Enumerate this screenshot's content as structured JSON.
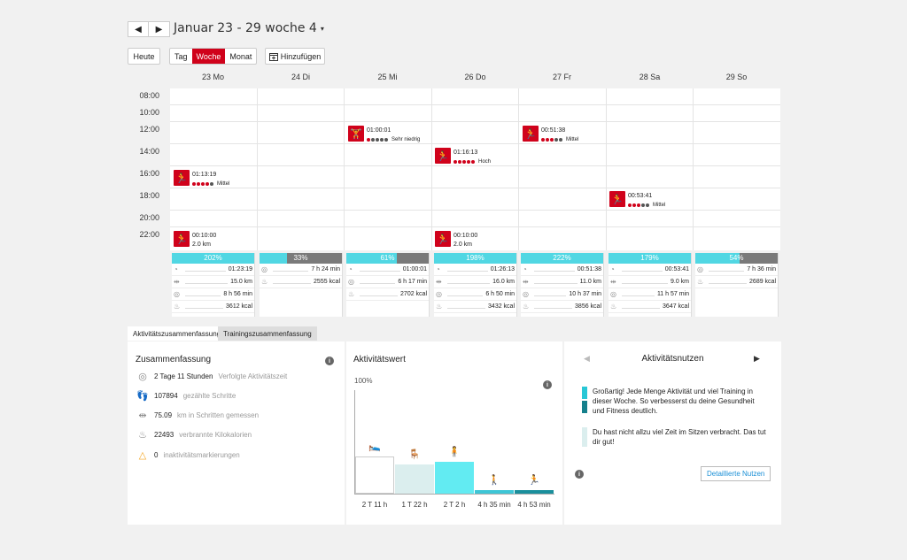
{
  "header": {
    "prev_label": "◀",
    "next_label": "▶",
    "title": "Januar 23 - 29 woche 4",
    "caret": "▾",
    "today_label": "Heute",
    "view_tabs": [
      {
        "label": "Tag"
      },
      {
        "label": "Woche"
      },
      {
        "label": "Monat"
      }
    ],
    "add_label": "Hinzufügen"
  },
  "days": [
    "23 Mo",
    "24 Di",
    "25 Mi",
    "26 Do",
    "27 Fr",
    "28 Sa",
    "29 So"
  ],
  "times": [
    "08:00",
    "10:00",
    "12:00",
    "14:00",
    "16:00",
    "18:00",
    "20:00",
    "22:00"
  ],
  "events": [
    {
      "icon": "running-icon",
      "glyph": "🏃",
      "duration": "01:13:19",
      "intensity": 4,
      "level": "Mittel"
    },
    {
      "icon": "running-icon",
      "glyph": "🏃",
      "duration": "00:10:00",
      "distance": "2.0 km"
    },
    {
      "icon": "strength-icon",
      "glyph": "🏋",
      "duration": "01:00:01",
      "intensity": 1,
      "level": "Sehr niedrig"
    },
    {
      "icon": "running-icon",
      "glyph": "🏃",
      "duration": "01:16:13",
      "intensity": 5,
      "level": "Hoch"
    },
    {
      "icon": "running-icon",
      "glyph": "🏃",
      "duration": "00:10:00",
      "distance": "2.0 km"
    },
    {
      "icon": "running-icon",
      "glyph": "🏃",
      "duration": "00:51:38",
      "intensity": 3,
      "level": "Mittel"
    },
    {
      "icon": "running-icon",
      "glyph": "🏃",
      "duration": "00:53:41",
      "intensity": 3,
      "level": "Mittel"
    }
  ],
  "day_stats": [
    {
      "percent": "202%",
      "fill": 1.0,
      "rows": [
        "01:23:19",
        "15.0 km",
        "8 h 56 min",
        "3612 kcal"
      ]
    },
    {
      "percent": "33%",
      "fill": 0.33,
      "rows": [
        "7 h 24 min",
        "2555 kcal"
      ]
    },
    {
      "percent": "61%",
      "fill": 0.61,
      "rows": [
        "01:00:01",
        "6 h 17 min",
        "2702 kcal"
      ]
    },
    {
      "percent": "198%",
      "fill": 1.0,
      "rows": [
        "01:26:13",
        "16.0 km",
        "6 h 50 min",
        "3432 kcal"
      ]
    },
    {
      "percent": "222%",
      "fill": 1.0,
      "rows": [
        "00:51:38",
        "11.0 km",
        "10 h 37 min",
        "3856 kcal"
      ]
    },
    {
      "percent": "179%",
      "fill": 1.0,
      "rows": [
        "00:53:41",
        "9.0 km",
        "11 h 57 min",
        "3647 kcal"
      ]
    },
    {
      "percent": "54%",
      "fill": 0.54,
      "rows": [
        "7 h 36 min",
        "2689 kcal"
      ]
    }
  ],
  "tabs": {
    "activity": "Aktivitätszusammenfassung",
    "training": "Trainingszusammenfassung"
  },
  "summary": {
    "title": "Zusammenfassung",
    "rows": [
      {
        "value": "2 Tage 11 Stunden",
        "label": "Verfolgte Aktivitätszeit"
      },
      {
        "value": "107894",
        "label": "gezählte Schritte"
      },
      {
        "value": "75.09",
        "label": "km in Schritten gemessen"
      },
      {
        "value": "22493",
        "label": "verbrannte Kilokalorien"
      },
      {
        "value": "0",
        "label": "inaktivitätsmarkierungen"
      }
    ]
  },
  "activity_value": {
    "title": "Aktivitätswert",
    "max_label": "100%",
    "bars": [
      {
        "label": "2 T 11 h",
        "level": 0.36,
        "color": "#ffffff"
      },
      {
        "label": "1 T 22 h",
        "level": 0.28,
        "color": "#dbeeee"
      },
      {
        "label": "2 T 2 h",
        "level": 0.31,
        "color": "#62ebf2"
      },
      {
        "label": "4 h 35 min",
        "level": 0.03,
        "color": "#3ec6d6"
      },
      {
        "label": "4 h 53 min",
        "level": 0.03,
        "color": "#1a8f9c"
      }
    ]
  },
  "benefit": {
    "title": "Aktivitätsnutzen",
    "messages": [
      {
        "text": "Großartig! Jede Menge Aktivität und viel Training in dieser Woche. So verbesserst du deine Gesundheit und Fitness deutlich.",
        "colors": [
          "#28c7d6",
          "#15808c"
        ]
      },
      {
        "text": "Du hast nicht allzu viel Zeit im Sitzen verbracht. Das tut dir gut!",
        "colors": [
          "#dbeeee"
        ]
      }
    ],
    "detail_label": "Detaillierte Nutzen"
  }
}
